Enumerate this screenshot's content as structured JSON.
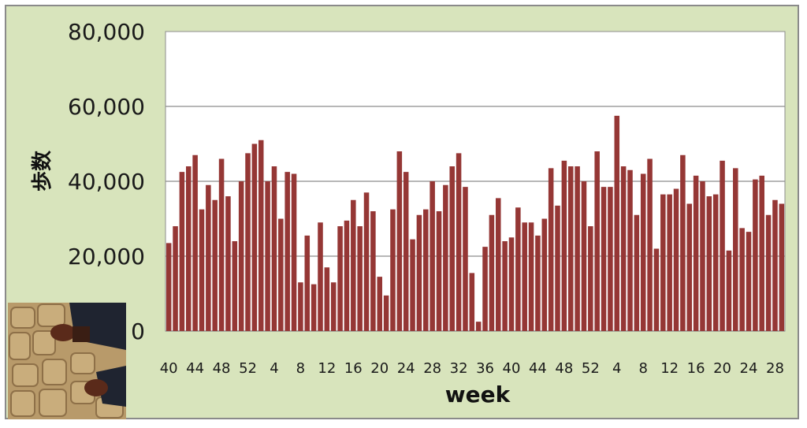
{
  "chart_data": {
    "type": "bar",
    "xlabel": "week",
    "ylabel": "歩数",
    "ylim": [
      0,
      80000
    ],
    "yticks": [
      0,
      20000,
      40000,
      60000,
      80000
    ],
    "ytick_labels": [
      "0",
      "20,000",
      "40,000",
      "60,000",
      "80,000"
    ],
    "grid": true,
    "xtick_labels": [
      "40",
      "44",
      "48",
      "52",
      "4",
      "8",
      "12",
      "16",
      "20",
      "24",
      "28",
      "32",
      "36",
      "40",
      "44",
      "48",
      "52",
      "4",
      "8",
      "12",
      "16",
      "20",
      "24",
      "28"
    ],
    "series": [
      {
        "color": "#953735",
        "values": [
          23500,
          28000,
          42500,
          44000,
          47000,
          32500,
          39000,
          35000,
          46000,
          36000,
          24000,
          40000,
          47500,
          50000,
          51000,
          40000,
          44000,
          30000,
          42500,
          42000,
          13000,
          25500,
          12500,
          29000,
          17000,
          13000,
          28000,
          29500,
          35000,
          28000,
          37000,
          32000,
          14500,
          9500,
          32500,
          48000,
          42500,
          24500,
          31000,
          32500,
          40000,
          32000,
          39000,
          44000,
          47500,
          38500,
          15500,
          2500,
          22500,
          31000,
          35500,
          24000,
          25000,
          33000,
          29000,
          29000,
          25500,
          30000,
          43500,
          33500,
          45500,
          44000,
          44000,
          40000,
          28000,
          48000,
          38500,
          38500,
          57500,
          44000,
          43000,
          31000,
          42000,
          46000,
          22000,
          36500,
          36500,
          38000,
          47000,
          34000,
          41500,
          40000,
          36000,
          36500,
          45500,
          21500,
          43500,
          27500,
          26500,
          40500,
          41500,
          31000,
          35000,
          34000
        ]
      }
    ]
  },
  "colors": {
    "background": "#d8e4bc",
    "plot_area": "#ffffff",
    "bar": "#953735",
    "grid": "#8c8c8c"
  }
}
